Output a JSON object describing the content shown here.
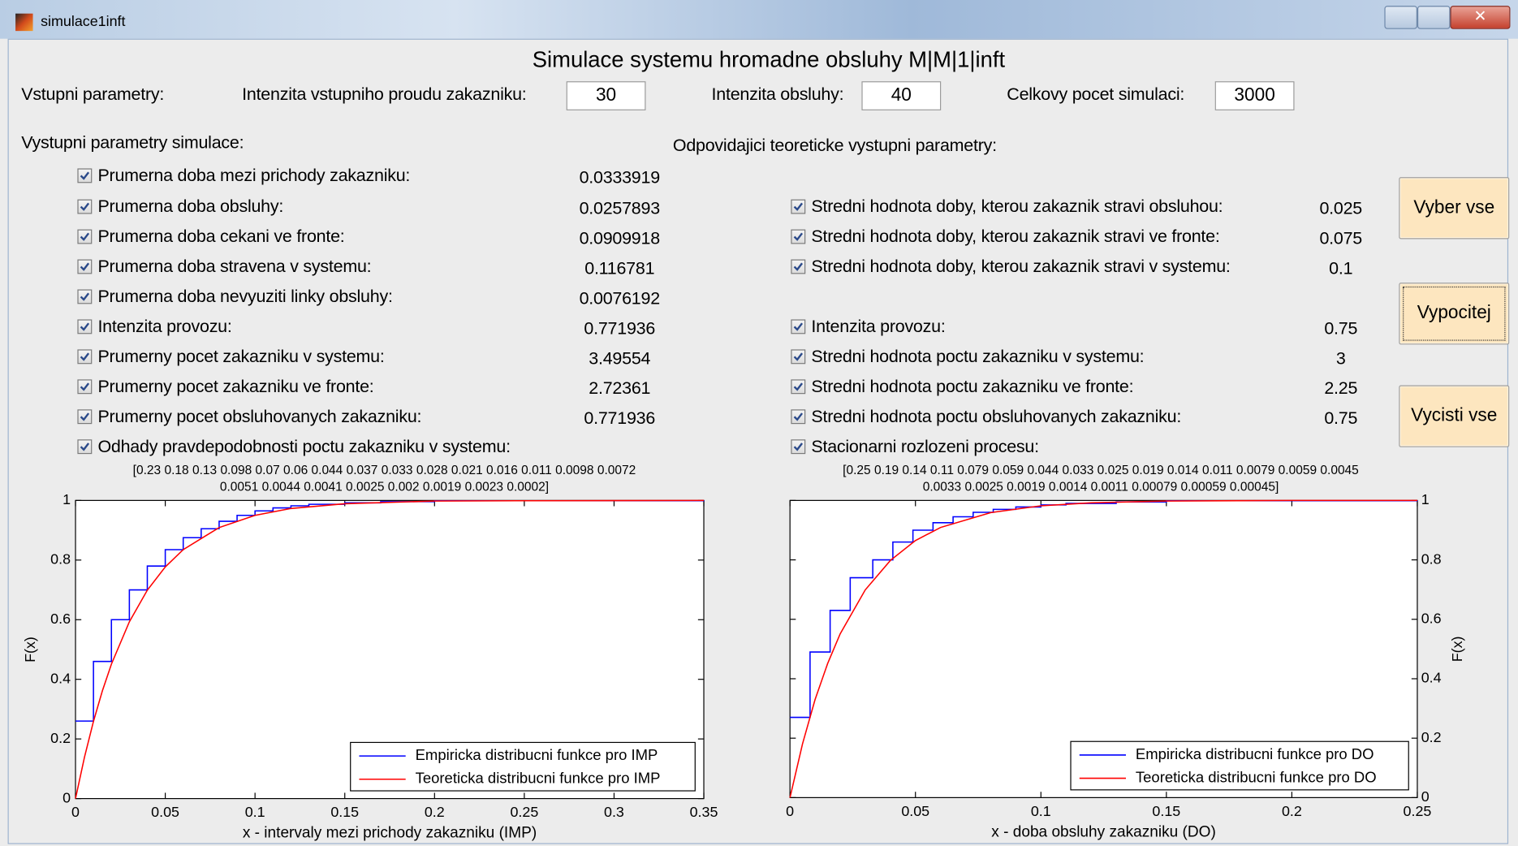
{
  "window": {
    "title": "simulace1inft"
  },
  "header": {
    "title": "Simulace systemu hromadne obsluhy M|M|1|inft"
  },
  "inputs": {
    "section": "Vstupni parametry:",
    "fields": [
      {
        "label": "Intenzita vstupniho proudu zakazniku:",
        "value": 30
      },
      {
        "label": "Intenzita obsluhy:",
        "value": 40
      },
      {
        "label": "Celkovy pocet simulaci:",
        "value": 3000
      }
    ]
  },
  "outputs": {
    "section": "Vystupni parametry simulace:",
    "rows": [
      {
        "label": "Prumerna doba mezi prichody zakazniku:",
        "checked": true,
        "value": 0.0333919
      },
      {
        "label": "Prumerna doba obsluhy:",
        "checked": true,
        "value": 0.0257893
      },
      {
        "label": "Prumerna doba cekani ve fronte:",
        "checked": true,
        "value": 0.0909918
      },
      {
        "label": "Prumerna doba stravena v systemu:",
        "checked": true,
        "value": 0.116781
      },
      {
        "label": "Prumerna doba nevyuziti linky obsluhy:",
        "checked": true,
        "value": 0.0076192
      },
      {
        "label": "Intenzita provozu:",
        "checked": true,
        "value": 0.771936
      },
      {
        "label": "Prumerny pocet zakazniku v systemu:",
        "checked": true,
        "value": 3.49554
      },
      {
        "label": "Prumerny pocet zakazniku ve fronte:",
        "checked": true,
        "value": 2.72361
      },
      {
        "label": "Prumerny pocet obsluhovanych zakazniku:",
        "checked": true,
        "value": 0.771936
      },
      {
        "label": "Odhady pravdepodobnosti poctu zakazniku v systemu:",
        "checked": true
      }
    ],
    "probabilities": [
      "[0.23 0.18 0.13 0.098 0.07 0.06 0.044 0.037 0.033 0.028 0.021 0.016 0.011 0.0098 0.0072",
      "0.0051 0.0044 0.0041 0.0025 0.002 0.0019 0.0023 0.0002]"
    ]
  },
  "theory": {
    "section": "Odpovidajici  teoreticke vystupni parametry:",
    "rows": [
      {
        "label": "Stredni hodnota doby, kterou zakaznik stravi obsluhou:",
        "checked": true,
        "value": 0.025
      },
      {
        "label": "Stredni hodnota doby, kterou zakaznik stravi ve fronte:",
        "checked": true,
        "value": 0.075
      },
      {
        "label": "Stredni hodnota doby, kterou zakaznik stravi v systemu:",
        "checked": true,
        "value": 0.1
      },
      {
        "label": "Intenzita provozu:",
        "checked": true,
        "value": 0.75
      },
      {
        "label": "Stredni hodnota poctu zakazniku v systemu:",
        "checked": true,
        "value": 3
      },
      {
        "label": "Stredni hodnota poctu zakazniku ve fronte:",
        "checked": true,
        "value": 2.25
      },
      {
        "label": "Stredni hodnota poctu obsluhovanych zakazniku:",
        "checked": true,
        "value": 0.75
      },
      {
        "label": "Stacionarni rozlozeni procesu:",
        "checked": true
      }
    ],
    "probabilities": [
      "[0.25 0.19 0.14 0.11 0.079 0.059 0.044 0.033 0.025 0.019 0.014 0.011 0.0079 0.0059 0.0045",
      "0.0033 0.0025 0.0019 0.0014 0.0011 0.00079 0.00059 0.00045]"
    ]
  },
  "buttons": [
    "Vyber vse",
    "Vypocitej",
    "Vycisti vse"
  ],
  "chart_data": [
    {
      "type": "line",
      "xlabel": "x - intervaly mezi prichody zakazniku (IMP)",
      "ylabel": "F(x)",
      "xlim": [
        0,
        0.35
      ],
      "ylim": [
        0,
        1
      ],
      "xticks": [
        0,
        0.05,
        0.1,
        0.15,
        0.2,
        0.25,
        0.3,
        0.35
      ],
      "yticks": [
        0,
        0.2,
        0.4,
        0.6,
        0.8,
        1
      ],
      "y_axis_side": "left",
      "legend": "lower right",
      "series": [
        {
          "name": "Empiricka distribucni funkce pro IMP",
          "color": "#0000ff",
          "step": "post",
          "x": [
            0,
            0.01,
            0.02,
            0.03,
            0.04,
            0.05,
            0.06,
            0.07,
            0.08,
            0.09,
            0.1,
            0.11,
            0.12,
            0.13,
            0.15,
            0.17,
            0.2,
            0.35
          ],
          "values": [
            0.26,
            0.46,
            0.6,
            0.7,
            0.78,
            0.835,
            0.875,
            0.905,
            0.93,
            0.95,
            0.965,
            0.975,
            0.982,
            0.987,
            0.992,
            0.996,
            0.999,
            1
          ]
        },
        {
          "name": "Teoreticka distribucni funkce pro IMP",
          "color": "#ff0000",
          "x": [
            0,
            0.005,
            0.01,
            0.015,
            0.02,
            0.03,
            0.04,
            0.05,
            0.06,
            0.08,
            0.1,
            0.12,
            0.15,
            0.2,
            0.25,
            0.35
          ],
          "values": [
            0,
            0.139,
            0.259,
            0.362,
            0.451,
            0.593,
            0.699,
            0.777,
            0.835,
            0.909,
            0.95,
            0.973,
            0.989,
            0.998,
            0.999,
            1
          ]
        }
      ]
    },
    {
      "type": "line",
      "xlabel": "x - doba obsluhy zakazniku (DO)",
      "ylabel": "F(x)",
      "xlim": [
        0,
        0.25
      ],
      "ylim": [
        0,
        1
      ],
      "xticks": [
        0,
        0.05,
        0.1,
        0.15,
        0.2,
        0.25
      ],
      "yticks": [
        0,
        0.2,
        0.4,
        0.6,
        0.8,
        1
      ],
      "y_axis_side": "right",
      "legend": "lower right",
      "series": [
        {
          "name": "Empiricka distribucni funkce pro DO",
          "color": "#0000ff",
          "step": "post",
          "x": [
            0,
            0.008,
            0.016,
            0.024,
            0.033,
            0.041,
            0.049,
            0.057,
            0.065,
            0.073,
            0.081,
            0.09,
            0.1,
            0.11,
            0.13,
            0.15,
            0.25
          ],
          "values": [
            0.27,
            0.49,
            0.63,
            0.74,
            0.8,
            0.86,
            0.9,
            0.925,
            0.945,
            0.96,
            0.97,
            0.978,
            0.985,
            0.99,
            0.995,
            0.999,
            1
          ]
        },
        {
          "name": "Teoreticka distribucni funkce pro DO",
          "color": "#ff0000",
          "x": [
            0,
            0.005,
            0.01,
            0.015,
            0.02,
            0.03,
            0.04,
            0.05,
            0.06,
            0.08,
            0.1,
            0.12,
            0.15,
            0.2,
            0.25
          ],
          "values": [
            0,
            0.181,
            0.33,
            0.451,
            0.551,
            0.699,
            0.798,
            0.865,
            0.909,
            0.959,
            0.982,
            0.992,
            0.998,
            1,
            1
          ]
        }
      ]
    }
  ]
}
